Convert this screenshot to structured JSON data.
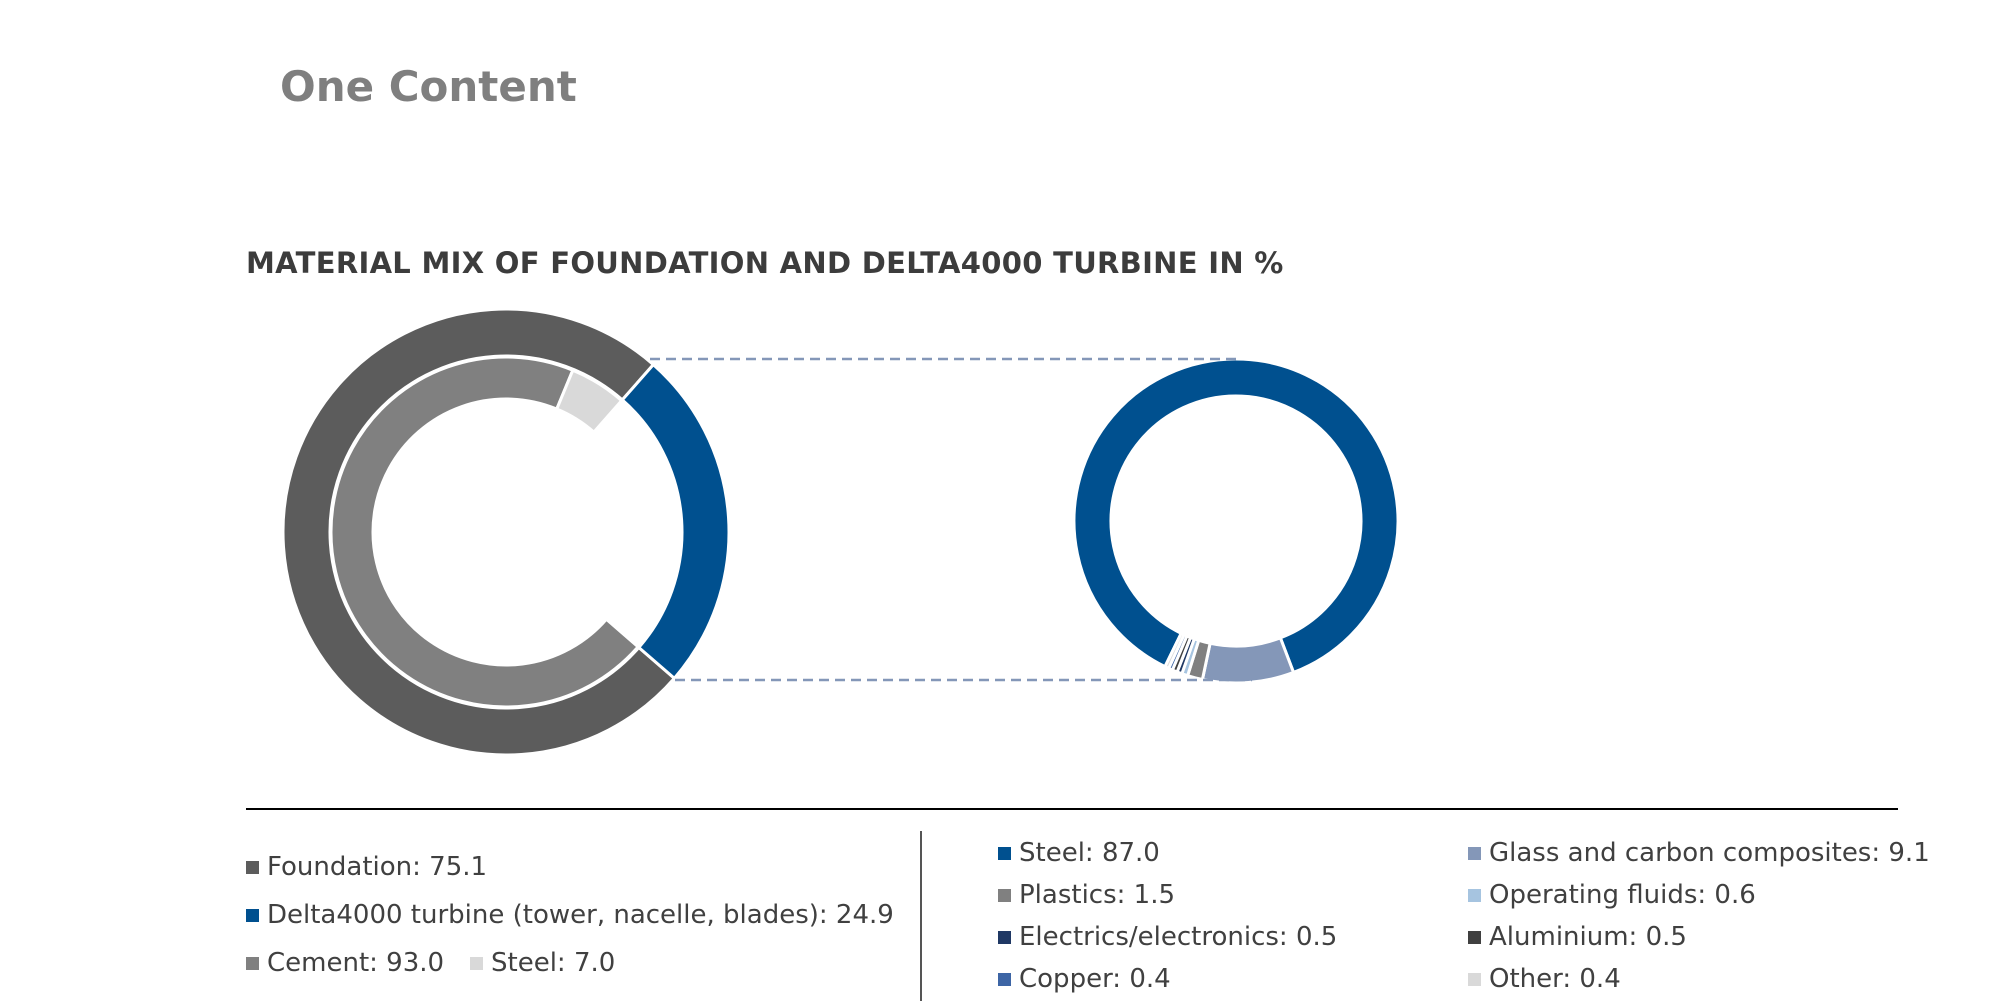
{
  "page": {
    "title": "One Content"
  },
  "chart_data": [
    {
      "type": "pie",
      "variant": "nested-donut",
      "title": "MATERIAL MIX OF FOUNDATION AND DELTA4000 TURBINE IN %",
      "outer_ring": [
        {
          "label": "Foundation",
          "value": 75.1,
          "color": "#5c5c5c"
        },
        {
          "label": "Delta4000 turbine (tower, nacelle, blades)",
          "value": 24.9,
          "color": "#00508f"
        }
      ],
      "inner_ring": [
        {
          "label": "Cement",
          "value": 93.0,
          "color": "#808080"
        },
        {
          "label": "Steel",
          "value": 7.0,
          "color": "#d9d9d9"
        }
      ]
    },
    {
      "type": "pie",
      "variant": "donut",
      "slices": [
        {
          "label": "Steel",
          "value": 87.0,
          "color": "#00508f"
        },
        {
          "label": "Glass and carbon composites",
          "value": 9.1,
          "color": "#8497b8"
        },
        {
          "label": "Plastics",
          "value": 1.5,
          "color": "#808080"
        },
        {
          "label": "Operating fluids",
          "value": 0.6,
          "color": "#a6c4e0"
        },
        {
          "label": "Electrics/electronics",
          "value": 0.5,
          "color": "#1f3864"
        },
        {
          "label": "Aluminium",
          "value": 0.5,
          "color": "#404040"
        },
        {
          "label": "Copper",
          "value": 0.4,
          "color": "#3d65a5"
        },
        {
          "label": "Other",
          "value": 0.4,
          "color": "#d9d9d9"
        }
      ]
    }
  ],
  "legend": {
    "foundation": "Foundation: 75.1",
    "turbine": "Delta4000 turbine (tower, nacelle, blades): 24.9",
    "cement": "Cement: 93.0",
    "steel_inner": "Steel: 7.0",
    "steel": "Steel: 87.0",
    "plastics": "Plastics: 1.5",
    "electrics": "Electrics/electronics: 0.5",
    "copper": "Copper: 0.4",
    "glass": "Glass and carbon composites: 9.1",
    "fluids": "Operating fluids: 0.6",
    "aluminium": "Aluminium: 0.5",
    "other": "Other: 0.4"
  }
}
